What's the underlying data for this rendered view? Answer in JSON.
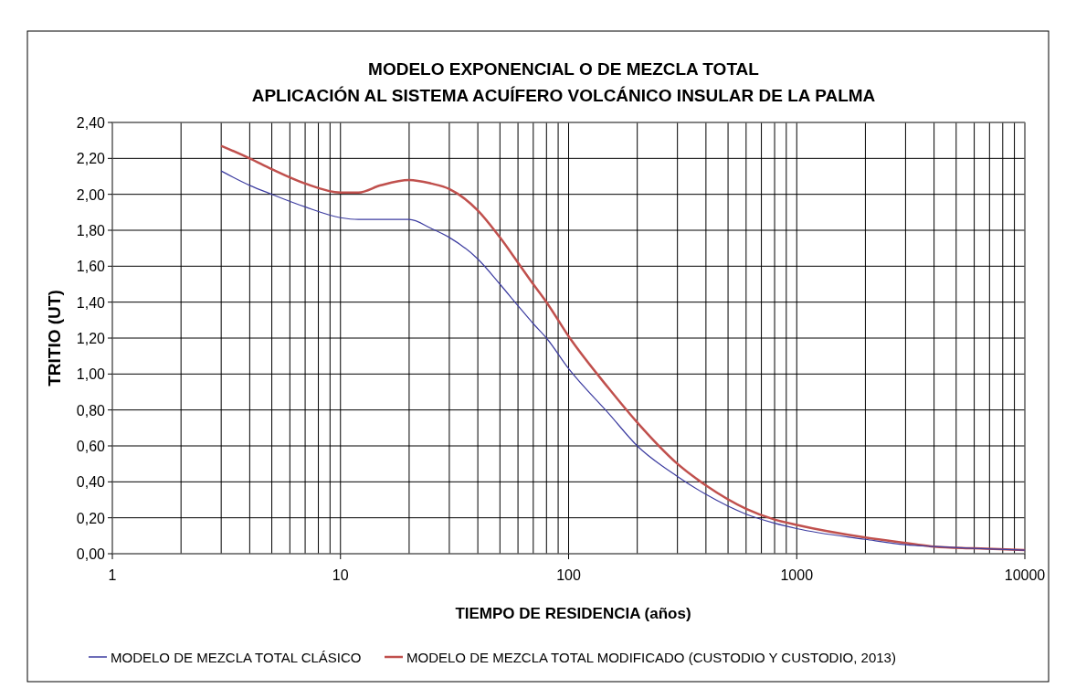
{
  "chart_data": {
    "type": "line",
    "title": "MODELO EXPONENCIAL O DE MEZCLA TOTAL\nAPLICACIÓN AL SISTEMA ACUÍFERO VOLCÁNICO INSULAR DE LA PALMA",
    "xlabel": "TIEMPO DE RESIDENCIA (años)",
    "ylabel": "TRITIO (UT)",
    "log": "x",
    "grid": true,
    "legend": "bottom",
    "marker": "none",
    "line_style": "solid",
    "x": [
      3,
      4,
      5,
      7,
      10,
      12,
      15,
      20,
      25,
      30,
      40,
      50,
      60,
      70,
      80,
      100,
      150,
      200,
      300,
      400,
      600,
      800,
      1000,
      2000,
      3000,
      4000,
      6000,
      10000
    ],
    "series": [
      {
        "name": "MODELO DE MEZCLA TOTAL CLÁSICO",
        "color": "#3c3ca0",
        "values": [
          2.13,
          2.05,
          2.0,
          1.93,
          1.87,
          1.86,
          1.86,
          1.86,
          1.81,
          1.76,
          1.64,
          1.5,
          1.38,
          1.28,
          1.2,
          1.03,
          0.78,
          0.6,
          0.43,
          0.33,
          0.22,
          0.17,
          0.14,
          0.08,
          0.05,
          0.04,
          0.03,
          0.02
        ]
      },
      {
        "name": "MODELO DE MEZCLA TOTAL MODIFICADO (CUSTODIO Y CUSTODIO, 2013)",
        "color": "#c0504d",
        "values": [
          2.27,
          2.2,
          2.14,
          2.06,
          2.01,
          2.01,
          2.05,
          2.08,
          2.06,
          2.03,
          1.91,
          1.76,
          1.62,
          1.5,
          1.4,
          1.21,
          0.92,
          0.73,
          0.5,
          0.38,
          0.25,
          0.19,
          0.16,
          0.09,
          0.06,
          0.04,
          0.03,
          0.02
        ]
      }
    ],
    "xlim": [
      1,
      10000
    ],
    "xticks": [
      1,
      {
        "value": 2,
        "label": null
      },
      {
        "value": 3,
        "label": null
      },
      {
        "value": 4,
        "label": null
      },
      {
        "value": 5,
        "label": null
      },
      {
        "value": 6,
        "label": null
      },
      {
        "value": 7,
        "label": null
      },
      {
        "value": 8,
        "label": null
      },
      {
        "value": 9,
        "label": null
      },
      10,
      {
        "value": 20,
        "label": null
      },
      {
        "value": 30,
        "label": null
      },
      {
        "value": 40,
        "label": null
      },
      {
        "value": 50,
        "label": null
      },
      {
        "value": 60,
        "label": null
      },
      {
        "value": 70,
        "label": null
      },
      {
        "value": 80,
        "label": null
      },
      {
        "value": 90,
        "label": null
      },
      100,
      {
        "value": 200,
        "label": null
      },
      {
        "value": 300,
        "label": null
      },
      {
        "value": 400,
        "label": null
      },
      {
        "value": 500,
        "label": null
      },
      {
        "value": 600,
        "label": null
      },
      {
        "value": 700,
        "label": null
      },
      {
        "value": 800,
        "label": null
      },
      {
        "value": 900,
        "label": null
      },
      1000,
      {
        "value": 2000,
        "label": null
      },
      {
        "value": 3000,
        "label": null
      },
      {
        "value": 4000,
        "label": null
      },
      {
        "value": 5000,
        "label": null
      },
      {
        "value": 6000,
        "label": null
      },
      {
        "value": 7000,
        "label": null
      },
      {
        "value": 8000,
        "label": null
      },
      {
        "value": 9000,
        "label": null
      },
      10000
    ],
    "ylim": [
      0,
      2.4
    ],
    "yticks": [
      {
        "value": 0,
        "label": "0,00"
      },
      {
        "value": 0.2,
        "label": "0,20"
      },
      {
        "value": 0.4,
        "label": "0,40"
      },
      {
        "value": 0.6,
        "label": "0,60"
      },
      {
        "value": 0.8,
        "label": "0,80"
      },
      {
        "value": 1.0,
        "label": "1,00"
      },
      {
        "value": 1.2,
        "label": "1,20"
      },
      {
        "value": 1.4,
        "label": "1,40"
      },
      {
        "value": 1.6,
        "label": "1,60"
      },
      {
        "value": 1.8,
        "label": "1,80"
      },
      {
        "value": 2.0,
        "label": "2,00"
      },
      {
        "value": 2.2,
        "label": "2,20"
      },
      {
        "value": 2.4,
        "label": "2,40"
      }
    ]
  }
}
